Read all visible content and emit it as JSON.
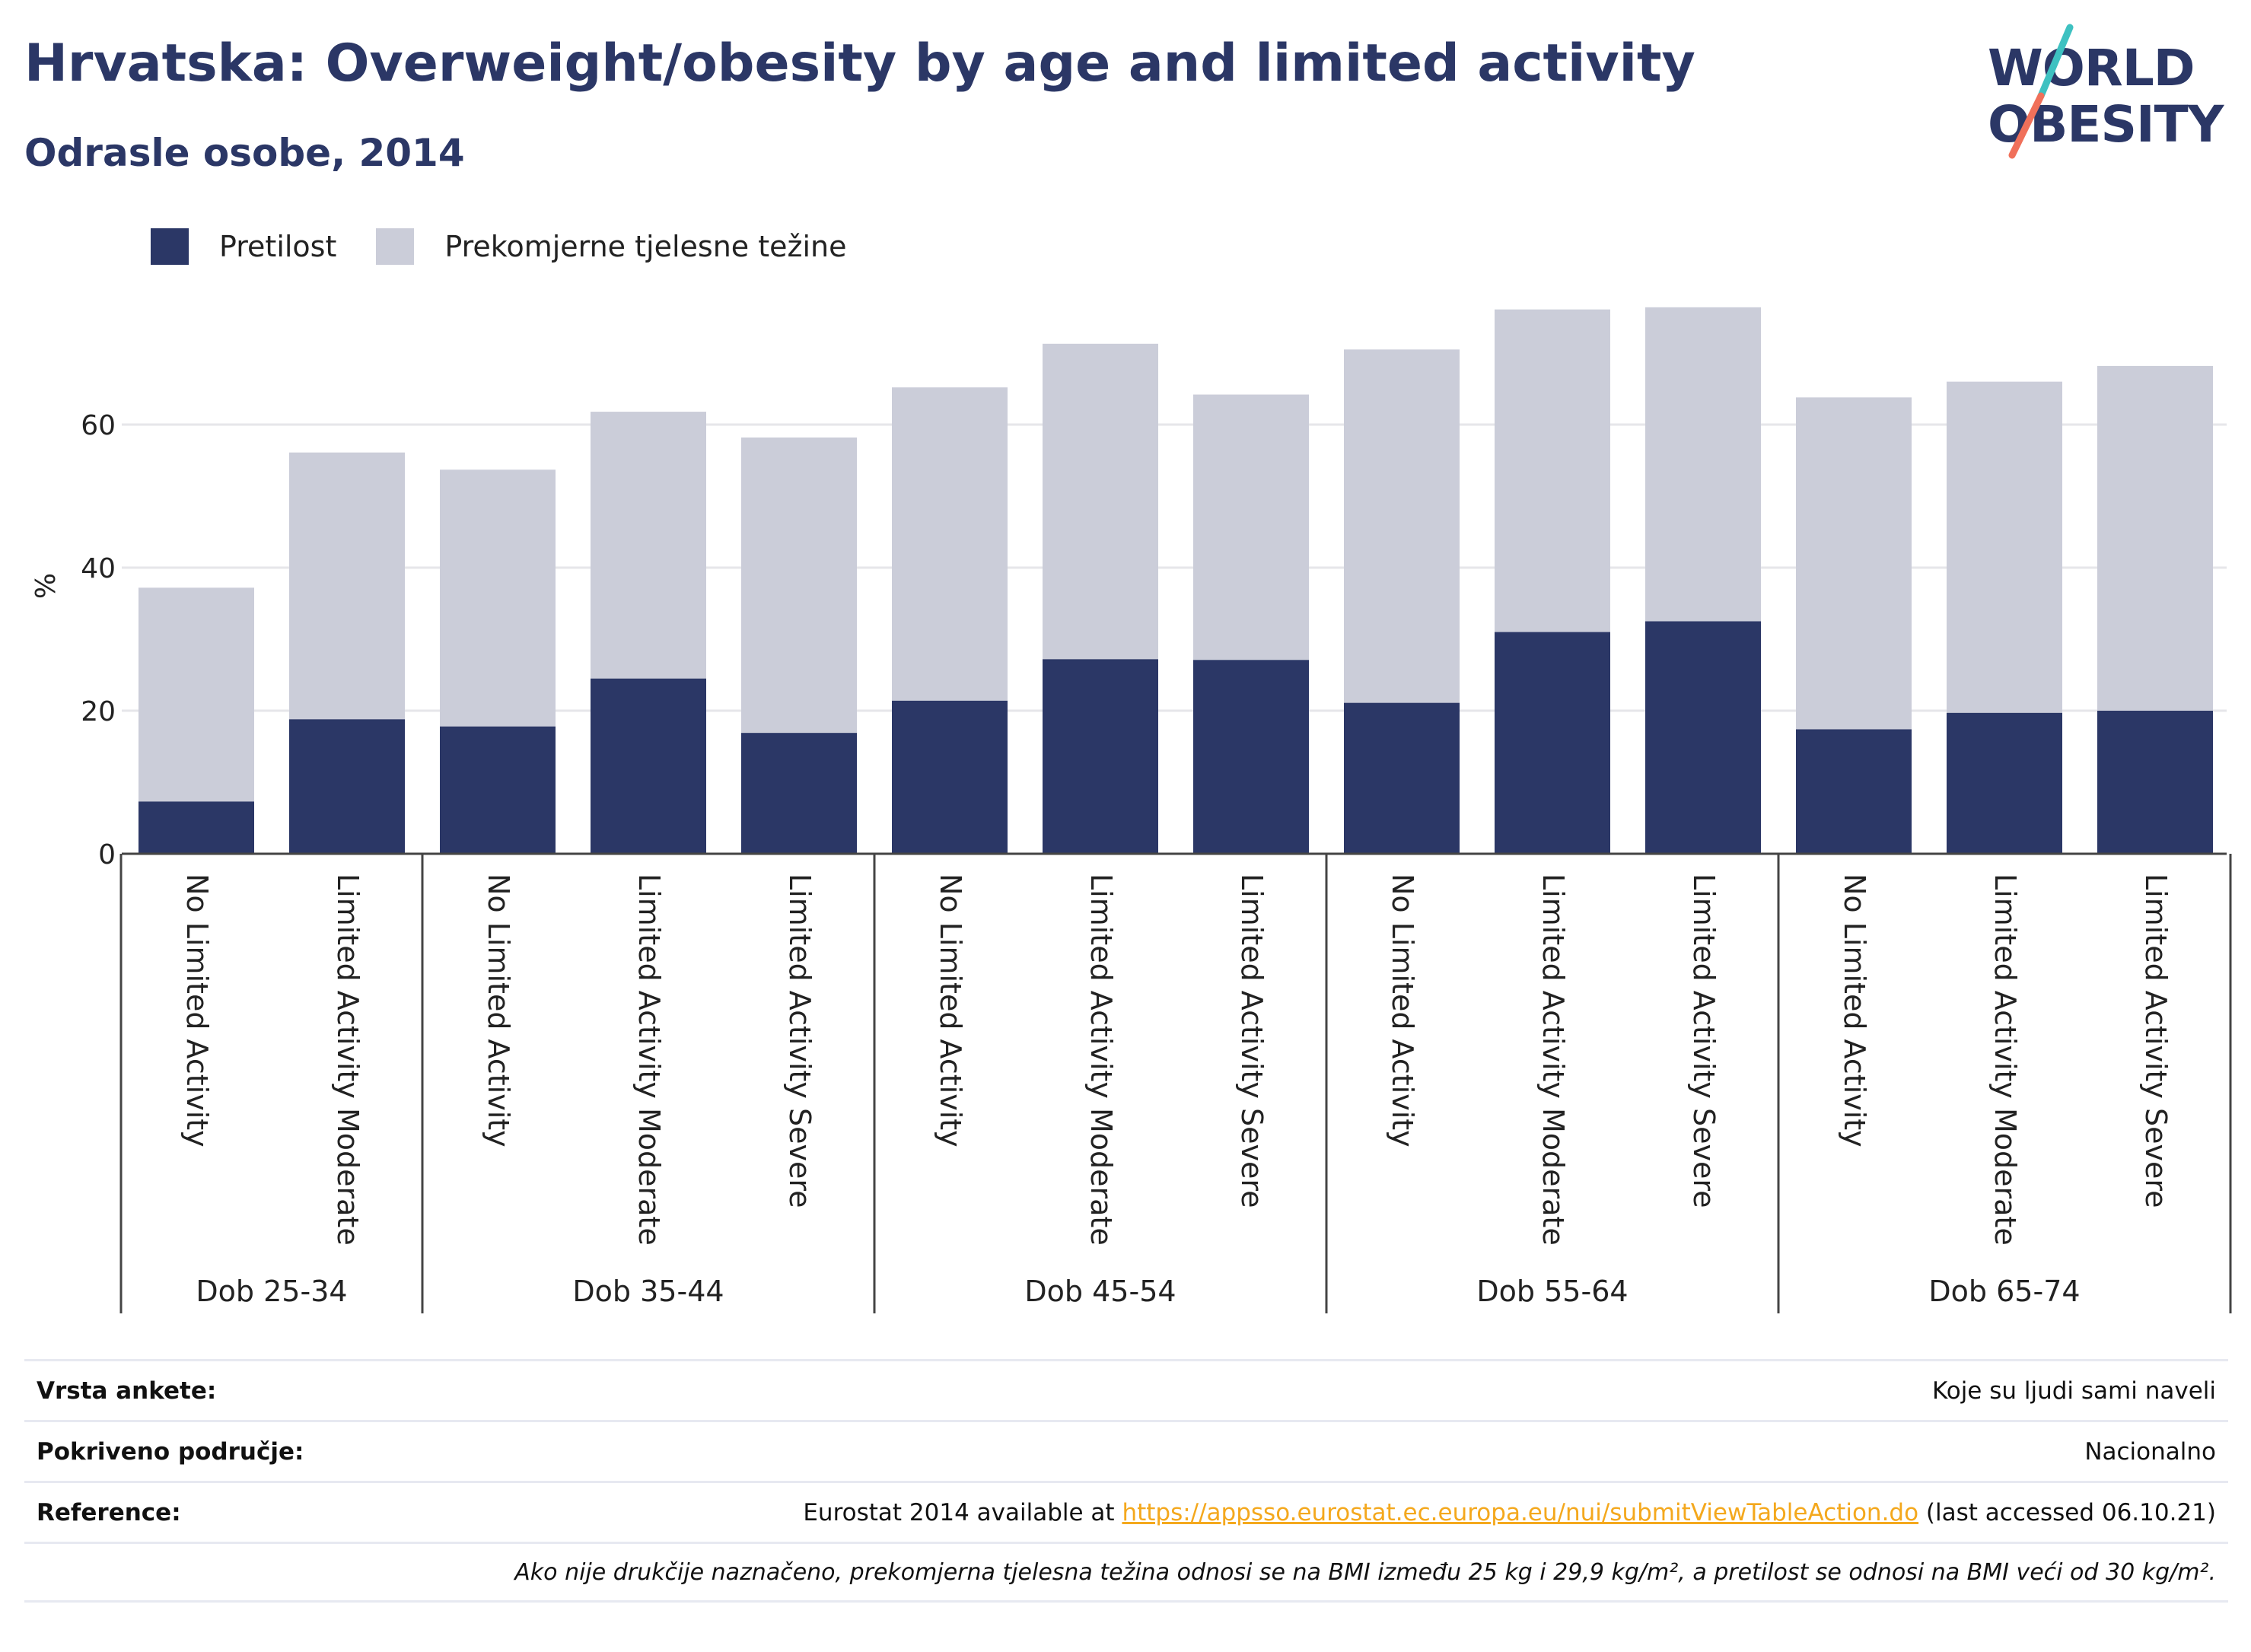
{
  "header": {
    "title": "Hrvatska: Overweight/obesity by age and limited activity",
    "subtitle": "Odrasle osobe, 2014"
  },
  "logo": {
    "line1": "WORLD",
    "line2": "OBESITY",
    "colors": {
      "text": "#2b3766",
      "slash_top": "#3ec1c1",
      "slash_bottom": "#f0705a"
    }
  },
  "colors": {
    "obesity": "#2b3766",
    "overweight": "#cbcdd9",
    "axis": "#444444",
    "grid": "#e6e6ea"
  },
  "legend": {
    "items": [
      {
        "label": "Pretilost",
        "color": "#2b3766"
      },
      {
        "label": "Prekomjerne tjelesne težine",
        "color": "#cbcdd9"
      }
    ]
  },
  "chart_data": {
    "type": "bar",
    "stacked": true,
    "ylabel": "%",
    "ylim": [
      0,
      80
    ],
    "yticks": [
      0,
      20,
      40,
      60
    ],
    "grid": true,
    "legend_position": "top-left",
    "groups": [
      {
        "label": "Dob 25-34",
        "categories": [
          "No Limited Activity",
          "Limited Activity Moderate"
        ]
      },
      {
        "label": "Dob 35-44",
        "categories": [
          "No Limited Activity",
          "Limited Activity Moderate",
          "Limited Activity Severe"
        ]
      },
      {
        "label": "Dob 45-54",
        "categories": [
          "No Limited Activity",
          "Limited Activity Moderate",
          "Limited Activity Severe"
        ]
      },
      {
        "label": "Dob 55-64",
        "categories": [
          "No Limited Activity",
          "Limited Activity Moderate",
          "Limited Activity Severe"
        ]
      },
      {
        "label": "Dob 65-74",
        "categories": [
          "No Limited Activity",
          "Limited Activity Moderate",
          "Limited Activity Severe"
        ]
      }
    ],
    "series": [
      {
        "name": "Pretilost",
        "values": [
          7.3,
          18.8,
          17.8,
          24.5,
          16.9,
          21.4,
          27.2,
          27.1,
          21.1,
          31.0,
          32.5,
          17.4,
          19.7,
          20.0
        ]
      },
      {
        "name": "Prekomjerne tjelesne težine",
        "values": [
          29.9,
          37.3,
          35.9,
          37.3,
          41.3,
          43.8,
          44.1,
          37.1,
          49.4,
          45.1,
          43.9,
          46.4,
          46.3,
          48.2
        ]
      }
    ]
  },
  "info": {
    "rows": [
      {
        "key": "Vrsta ankete:",
        "value": "Koje su ljudi sami naveli"
      },
      {
        "key": "Pokriveno područje:",
        "value": "Nacionalno"
      }
    ],
    "reference": {
      "key": "Reference:",
      "prefix": "Eurostat 2014 available at ",
      "link": "https://appsso.eurostat.ec.europa.eu/nui/submitViewTableAction.do",
      "suffix": " (last accessed 06.10.21)"
    },
    "note": "Ako nije drukčije naznačeno, prekomjerna tjelesna težina odnosi se na BMI između 25 kg i 29,9 kg/m², a pretilost se odnosi na BMI veći od 30 kg/m²."
  }
}
